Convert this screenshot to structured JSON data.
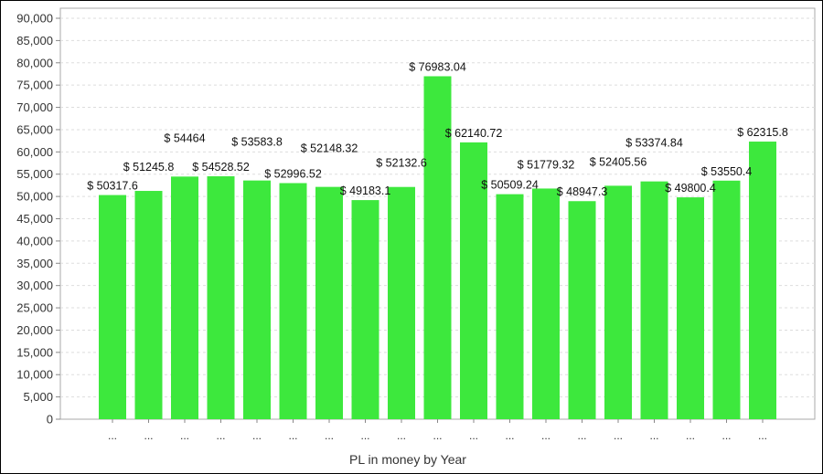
{
  "chart_data": {
    "type": "bar",
    "title": "",
    "xlabel": "PL in money by Year",
    "ylabel": "",
    "ylim": [
      0,
      90000
    ],
    "ytick_step": 5000,
    "grid": true,
    "bar_color": "#3de83d",
    "categories": [
      "...",
      "...",
      "...",
      "...",
      "...",
      "...",
      "...",
      "...",
      "...",
      "...",
      "...",
      "...",
      "...",
      "...",
      "...",
      "...",
      "...",
      "...",
      "..."
    ],
    "values": [
      50317.6,
      51245.8,
      54464,
      54528.52,
      53583.8,
      52996.52,
      52148.32,
      49183.1,
      52132.6,
      76983.04,
      62140.72,
      50509.24,
      51779.32,
      48947.3,
      52405.56,
      53374.84,
      49800.4,
      53550.4,
      62315.8
    ],
    "data_labels": [
      "$ 50317.6",
      "$ 51245.8",
      "$ 54464",
      "$ 54528.52",
      "$ 53583.8",
      "$ 52996.52",
      "$ 52148.32",
      "$ 49183.1",
      "$ 52132.6",
      "$ 76983.04",
      "$ 62140.72",
      "$ 50509.24",
      "$ 51779.32",
      "$ 48947.3",
      "$ 52405.56",
      "$ 53374.84",
      "$ 49800.4",
      "$ 53550.4",
      "$ 62315.8"
    ]
  }
}
